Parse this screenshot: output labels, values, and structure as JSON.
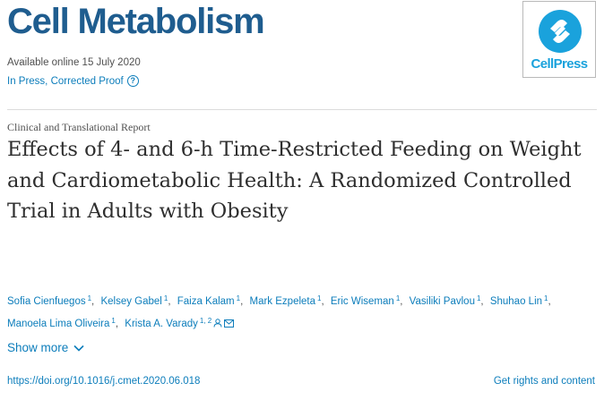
{
  "header": {
    "journal_title": "Cell Metabolism",
    "available_online": "Available online 15 July 2020",
    "status": "In Press, Corrected Proof",
    "help_icon": "question-circle-icon",
    "publisher": "CellPress"
  },
  "article": {
    "type": "Clinical and Translational Report",
    "title": "Effects of 4- and 6-h Time-Restricted Feeding on Weight and Cardiometabolic Health: A Randomized Controlled Trial in Adults with Obesity",
    "authors": [
      {
        "name": "Sofia Cienfuegos",
        "sup": "1"
      },
      {
        "name": "Kelsey Gabel",
        "sup": "1"
      },
      {
        "name": "Faiza Kalam",
        "sup": "1"
      },
      {
        "name": "Mark Ezpeleta",
        "sup": "1"
      },
      {
        "name": "Eric Wiseman",
        "sup": "1"
      },
      {
        "name": "Vasiliki Pavlou",
        "sup": "1"
      },
      {
        "name": "Shuhao Lin",
        "sup": "1"
      },
      {
        "name": "Manoela Lima Oliveira",
        "sup": "1"
      },
      {
        "name": "Krista A. Varady",
        "sup": "1, 2"
      }
    ],
    "show_more": "Show more",
    "doi": "https://doi.org/10.1016/j.cmet.2020.06.018",
    "rights": "Get rights and content"
  },
  "colors": {
    "journal_blue": "#1f5d8f",
    "link_blue": "#0c7dbb",
    "cellpress_blue": "#1aa2dc",
    "text": "#2e2e2e"
  }
}
